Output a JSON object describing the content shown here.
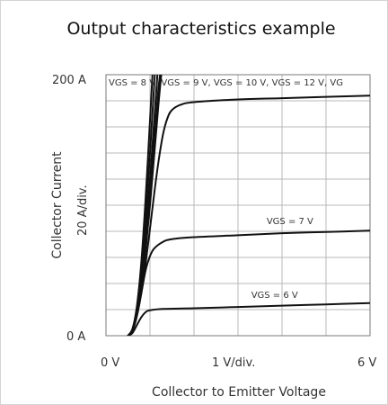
{
  "chart_data": {
    "type": "line",
    "title": "Output characteristics example",
    "xlabel": "Collector to Emitter Voltage",
    "ylabel": "Collector Current",
    "xlim": [
      0,
      6
    ],
    "ylim": [
      0,
      200
    ],
    "x_ticks": [
      "0  V",
      "1  V/div.",
      "6  V"
    ],
    "y_ticks": [
      "0  A",
      "20  A/div.",
      "200  A"
    ],
    "grid": true,
    "annotations": [
      "VGS = 8 V, VGS = 9 V, VGS = 10 V, VGS = 12 V, VG",
      "VGS = 7 V",
      "VGS = 6 V"
    ],
    "series": [
      {
        "values": [
          [
            0.5,
            0
          ],
          [
            0.6,
            2
          ],
          [
            0.7,
            8
          ],
          [
            0.8,
            14
          ],
          [
            0.9,
            18
          ],
          [
            1.0,
            19.5
          ],
          [
            1.3,
            20.5
          ],
          [
            2,
            21
          ],
          [
            3,
            22
          ],
          [
            4,
            23
          ],
          [
            5,
            24
          ],
          [
            6,
            25
          ]
        ]
      },
      {
        "values": [
          [
            0.5,
            0
          ],
          [
            0.6,
            4
          ],
          [
            0.7,
            15
          ],
          [
            0.8,
            32
          ],
          [
            0.9,
            50
          ],
          [
            1.0,
            61
          ],
          [
            1.1,
            67
          ],
          [
            1.3,
            72
          ],
          [
            1.5,
            74
          ],
          [
            2,
            75.5
          ],
          [
            3,
            77
          ],
          [
            4,
            78.5
          ],
          [
            5,
            79.5
          ],
          [
            6,
            80.5
          ]
        ]
      },
      {
        "values": [
          [
            0.5,
            0
          ],
          [
            0.6,
            4
          ],
          [
            0.7,
            15
          ],
          [
            0.8,
            32
          ],
          [
            0.9,
            55
          ],
          [
            1.0,
            82
          ],
          [
            1.1,
            110
          ],
          [
            1.2,
            135
          ],
          [
            1.3,
            155
          ],
          [
            1.4,
            167
          ],
          [
            1.5,
            173
          ],
          [
            1.7,
            177
          ],
          [
            2,
            179
          ],
          [
            3,
            181
          ],
          [
            4,
            182
          ],
          [
            5,
            183
          ],
          [
            6,
            184
          ]
        ]
      },
      {
        "values": [
          [
            0.5,
            0
          ],
          [
            0.6,
            4
          ],
          [
            0.7,
            15
          ],
          [
            0.8,
            35
          ],
          [
            0.9,
            65
          ],
          [
            1.0,
            100
          ],
          [
            1.1,
            140
          ],
          [
            1.2,
            180
          ],
          [
            1.3,
            215
          ]
        ]
      },
      {
        "values": [
          [
            0.5,
            0
          ],
          [
            0.6,
            4
          ],
          [
            0.7,
            16
          ],
          [
            0.8,
            38
          ],
          [
            0.9,
            70
          ],
          [
            1.0,
            108
          ],
          [
            1.1,
            150
          ],
          [
            1.2,
            192
          ],
          [
            1.3,
            215
          ]
        ]
      },
      {
        "values": [
          [
            0.5,
            0
          ],
          [
            0.6,
            4
          ],
          [
            0.7,
            17
          ],
          [
            0.8,
            42
          ],
          [
            0.9,
            77
          ],
          [
            1.0,
            120
          ],
          [
            1.1,
            167
          ],
          [
            1.2,
            215
          ]
        ]
      },
      {
        "values": [
          [
            0.5,
            0
          ],
          [
            0.6,
            5
          ],
          [
            0.7,
            20
          ],
          [
            0.8,
            48
          ],
          [
            0.9,
            90
          ],
          [
            1.0,
            140
          ],
          [
            1.1,
            195
          ],
          [
            1.15,
            215
          ]
        ]
      },
      {
        "values": [
          [
            0.5,
            0
          ],
          [
            0.6,
            5
          ],
          [
            0.7,
            22
          ],
          [
            0.8,
            55
          ],
          [
            0.9,
            105
          ],
          [
            1.0,
            165
          ],
          [
            1.08,
            215
          ]
        ]
      }
    ]
  },
  "colors": {
    "curve": "#111111",
    "grid": "#b8b8b8",
    "border": "#7a7a7a",
    "frame": "#cfcfcf"
  }
}
